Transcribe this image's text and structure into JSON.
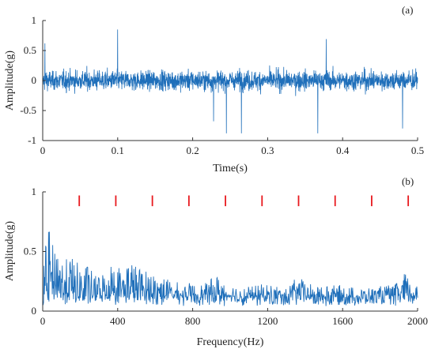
{
  "colors": {
    "signal": "#1f6fba",
    "marker": "#e8191e",
    "axis": "#333333"
  },
  "chart_data": [
    {
      "type": "line",
      "panel_label": "(a)",
      "xlabel": "Time(s)",
      "ylabel": "Amplitude(g)",
      "xlim": [
        0,
        0.5
      ],
      "ylim": [
        -1,
        1
      ],
      "x_ticks": [
        "0",
        "0.1",
        "0.2",
        "0.3",
        "0.4",
        "0.5"
      ],
      "y_ticks": [
        "-1",
        "-0.5",
        "0",
        "0.5",
        "1"
      ],
      "grid": false,
      "series": [
        {
          "style": "dense vibration signal, approx. 2048 samples",
          "approx_range": [
            -0.9,
            0.85
          ],
          "notable_peaks": [
            {
              "x": 0.003,
              "y": 0.62
            },
            {
              "x": 0.1,
              "y": 0.85
            },
            {
              "x": 0.228,
              "y": -0.68
            },
            {
              "x": 0.245,
              "y": -0.88
            },
            {
              "x": 0.265,
              "y": -0.88
            },
            {
              "x": 0.367,
              "y": -0.88
            },
            {
              "x": 0.378,
              "y": 0.69
            },
            {
              "x": 0.48,
              "y": -0.8
            }
          ]
        }
      ]
    },
    {
      "type": "line",
      "panel_label": "(b)",
      "xlabel": "Frequency(Hz)",
      "ylabel": "Amplitude(g)",
      "xlim": [
        0,
        2000
      ],
      "ylim": [
        0,
        1
      ],
      "x_ticks": [
        "0",
        "400",
        "800",
        "1200",
        "1600",
        "2000"
      ],
      "y_ticks": [
        "0",
        "0.5",
        "1"
      ],
      "grid": false,
      "series": [
        {
          "style": "amplitude spectrum",
          "spectrum_points": [
            [
              0,
              0.3
            ],
            [
              15,
              0.6
            ],
            [
              35,
              0.8
            ],
            [
              60,
              0.55
            ],
            [
              85,
              0.72
            ],
            [
              110,
              0.45
            ],
            [
              150,
              0.52
            ],
            [
              190,
              0.44
            ],
            [
              240,
              0.43
            ],
            [
              280,
              0.32
            ],
            [
              330,
              0.38
            ],
            [
              380,
              0.48
            ],
            [
              420,
              0.39
            ],
            [
              460,
              0.5
            ],
            [
              500,
              0.42
            ],
            [
              560,
              0.37
            ],
            [
              620,
              0.34
            ],
            [
              700,
              0.27
            ],
            [
              780,
              0.25
            ],
            [
              860,
              0.24
            ],
            [
              930,
              0.33
            ],
            [
              1000,
              0.24
            ],
            [
              1100,
              0.22
            ],
            [
              1200,
              0.25
            ],
            [
              1300,
              0.2
            ],
            [
              1360,
              0.32
            ],
            [
              1450,
              0.22
            ],
            [
              1550,
              0.24
            ],
            [
              1700,
              0.2
            ],
            [
              1800,
              0.22
            ],
            [
              1880,
              0.24
            ],
            [
              1935,
              0.36
            ],
            [
              1970,
              0.25
            ],
            [
              2000,
              0.22
            ]
          ],
          "approx_floor": [
            0.03,
            0.12
          ]
        },
        {
          "style": "red marker ticks",
          "marker_frequencies": [
            195,
            390,
            585,
            780,
            975,
            1170,
            1365,
            1560,
            1755,
            1950
          ],
          "marker_range": [
            0.88,
            0.97
          ]
        }
      ]
    }
  ]
}
